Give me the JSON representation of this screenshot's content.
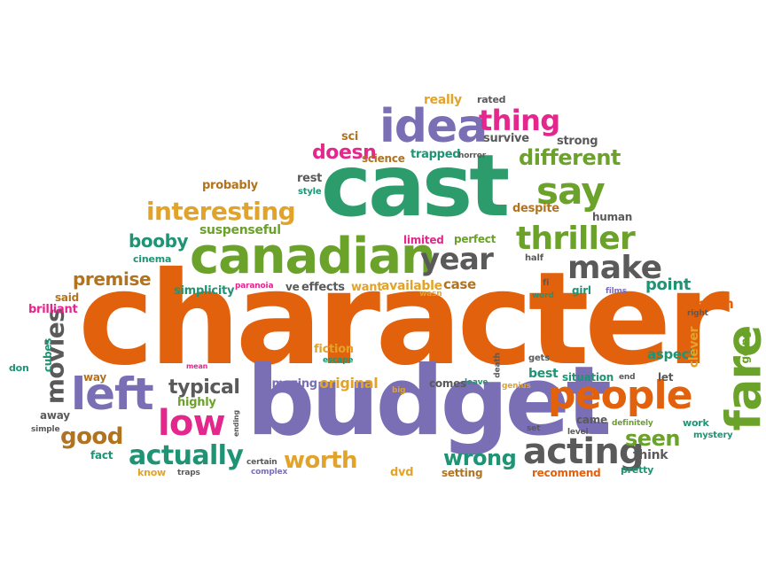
{
  "colors": {
    "orange": "#e2610c",
    "green": "#2c9c6c",
    "purple": "#7a6fb5",
    "gray": "#5a5a5a",
    "magenta": "#e3278c",
    "gold": "#e1a32a",
    "lime": "#6aa22a",
    "brown": "#b2731f",
    "teal": "#1f9475",
    "blue": "#4b8fc8"
  },
  "words": [
    {
      "text": "character",
      "weight": "huge",
      "color": "orange"
    },
    {
      "text": "budget",
      "weight": "huge",
      "color": "purple"
    },
    {
      "text": "cast",
      "weight": "huge",
      "color": "green"
    },
    {
      "text": "canadian",
      "weight": "large",
      "color": "lime"
    },
    {
      "text": "idea",
      "weight": "large",
      "color": "purple"
    },
    {
      "text": "fare",
      "weight": "large",
      "color": "lime"
    },
    {
      "text": "people",
      "weight": "large",
      "color": "orange"
    },
    {
      "text": "left",
      "weight": "large",
      "color": "purple"
    },
    {
      "text": "thriller",
      "weight": "large",
      "color": "lime"
    },
    {
      "text": "make",
      "weight": "large",
      "color": "gray"
    },
    {
      "text": "say",
      "weight": "large",
      "color": "lime"
    },
    {
      "text": "acting",
      "weight": "large",
      "color": "gray"
    },
    {
      "text": "low",
      "weight": "large",
      "color": "magenta"
    },
    {
      "text": "thing",
      "weight": "large",
      "color": "magenta"
    },
    {
      "text": "year",
      "weight": "large",
      "color": "gray"
    },
    {
      "text": "movies",
      "weight": "large",
      "color": "gray"
    },
    {
      "text": "interesting",
      "weight": "medium",
      "color": "gold"
    },
    {
      "text": "different",
      "weight": "medium",
      "color": "lime"
    },
    {
      "text": "actually",
      "weight": "medium",
      "color": "teal"
    },
    {
      "text": "worth",
      "weight": "medium",
      "color": "gold"
    },
    {
      "text": "good",
      "weight": "medium",
      "color": "brown"
    },
    {
      "text": "wrong",
      "weight": "medium",
      "color": "teal"
    },
    {
      "text": "seen",
      "weight": "medium",
      "color": "lime"
    },
    {
      "text": "typical",
      "weight": "medium",
      "color": "gray"
    },
    {
      "text": "premise",
      "weight": "medium",
      "color": "brown"
    },
    {
      "text": "doesn",
      "weight": "medium",
      "color": "magenta"
    },
    {
      "text": "booby",
      "weight": "medium",
      "color": "teal"
    },
    {
      "text": "point",
      "weight": "medium",
      "color": "teal"
    },
    {
      "text": "suspenseful",
      "weight": "small",
      "color": "lime"
    },
    {
      "text": "original",
      "weight": "small",
      "color": "gold"
    },
    {
      "text": "amazing",
      "weight": "small",
      "color": "purple"
    },
    {
      "text": "simplicity",
      "weight": "small",
      "color": "teal"
    },
    {
      "text": "available",
      "weight": "small",
      "color": "gold"
    },
    {
      "text": "aspect",
      "weight": "small",
      "color": "teal"
    },
    {
      "text": "room",
      "weight": "small",
      "color": "orange"
    },
    {
      "text": "clever",
      "weight": "small",
      "color": "gold"
    },
    {
      "text": "going",
      "weight": "small",
      "color": "lime"
    },
    {
      "text": "trapped",
      "weight": "small",
      "color": "teal"
    },
    {
      "text": "science",
      "weight": "small",
      "color": "brown"
    },
    {
      "text": "horror",
      "weight": "tiny",
      "color": "gray"
    },
    {
      "text": "survive",
      "weight": "small",
      "color": "gray"
    },
    {
      "text": "strong",
      "weight": "small",
      "color": "gray"
    },
    {
      "text": "really",
      "weight": "small",
      "color": "gold"
    },
    {
      "text": "rated",
      "weight": "tiny",
      "color": "gray"
    },
    {
      "text": "sci",
      "weight": "small",
      "color": "brown"
    },
    {
      "text": "probably",
      "weight": "small",
      "color": "brown"
    },
    {
      "text": "rest",
      "weight": "small",
      "color": "gray"
    },
    {
      "text": "style",
      "weight": "tiny",
      "color": "teal"
    },
    {
      "text": "despite",
      "weight": "small",
      "color": "brown"
    },
    {
      "text": "human",
      "weight": "small",
      "color": "gray"
    },
    {
      "text": "limited",
      "weight": "small",
      "color": "magenta"
    },
    {
      "text": "perfect",
      "weight": "small",
      "color": "lime"
    },
    {
      "text": "half",
      "weight": "tiny",
      "color": "gray"
    },
    {
      "text": "cinema",
      "weight": "small",
      "color": "teal"
    },
    {
      "text": "said",
      "weight": "small",
      "color": "brown"
    },
    {
      "text": "brilliant",
      "weight": "small",
      "color": "magenta"
    },
    {
      "text": "paranoia",
      "weight": "tiny",
      "color": "magenta"
    },
    {
      "text": "ve",
      "weight": "small",
      "color": "gray"
    },
    {
      "text": "effects",
      "weight": "small",
      "color": "gray"
    },
    {
      "text": "want",
      "weight": "small",
      "color": "gold"
    },
    {
      "text": "case",
      "weight": "small",
      "color": "brown"
    },
    {
      "text": "wasn",
      "weight": "tiny",
      "color": "gold"
    },
    {
      "text": "fi",
      "weight": "tiny",
      "color": "gray"
    },
    {
      "text": "word",
      "weight": "tiny",
      "color": "teal"
    },
    {
      "text": "girl",
      "weight": "small",
      "color": "teal"
    },
    {
      "text": "films",
      "weight": "tiny",
      "color": "purple"
    },
    {
      "text": "right",
      "weight": "tiny",
      "color": "gray"
    },
    {
      "text": "cubes",
      "weight": "small",
      "color": "teal"
    },
    {
      "text": "fiction",
      "weight": "small",
      "color": "gold"
    },
    {
      "text": "escape",
      "weight": "tiny",
      "color": "teal"
    },
    {
      "text": "death",
      "weight": "tiny",
      "color": "gray"
    },
    {
      "text": "gets",
      "weight": "tiny",
      "color": "gray"
    },
    {
      "text": "best",
      "weight": "small",
      "color": "teal"
    },
    {
      "text": "let",
      "weight": "small",
      "color": "gray"
    },
    {
      "text": "situation",
      "weight": "small",
      "color": "teal"
    },
    {
      "text": "end",
      "weight": "tiny",
      "color": "gray"
    },
    {
      "text": "work",
      "weight": "small",
      "color": "teal"
    },
    {
      "text": "don",
      "weight": "small",
      "color": "teal"
    },
    {
      "text": "way",
      "weight": "small",
      "color": "brown"
    },
    {
      "text": "mean",
      "weight": "tiny",
      "color": "magenta"
    },
    {
      "text": "highly",
      "weight": "small",
      "color": "lime"
    },
    {
      "text": "comes",
      "weight": "small",
      "color": "gray"
    },
    {
      "text": "leave",
      "weight": "tiny",
      "color": "teal"
    },
    {
      "text": "genius",
      "weight": "tiny",
      "color": "gold"
    },
    {
      "text": "big",
      "weight": "tiny",
      "color": "gold"
    },
    {
      "text": "came",
      "weight": "small",
      "color": "gray"
    },
    {
      "text": "definitely",
      "weight": "tiny",
      "color": "lime"
    },
    {
      "text": "level",
      "weight": "tiny",
      "color": "gray"
    },
    {
      "text": "mystery",
      "weight": "tiny",
      "color": "teal"
    },
    {
      "text": "away",
      "weight": "small",
      "color": "gray"
    },
    {
      "text": "simple",
      "weight": "tiny",
      "color": "gray"
    },
    {
      "text": "ending",
      "weight": "tiny",
      "color": "gray"
    },
    {
      "text": "set",
      "weight": "tiny",
      "color": "gray"
    },
    {
      "text": "think",
      "weight": "small",
      "color": "gray"
    },
    {
      "text": "fact",
      "weight": "small",
      "color": "teal"
    },
    {
      "text": "know",
      "weight": "small",
      "color": "gold"
    },
    {
      "text": "traps",
      "weight": "tiny",
      "color": "gray"
    },
    {
      "text": "certain",
      "weight": "tiny",
      "color": "gray"
    },
    {
      "text": "complex",
      "weight": "tiny",
      "color": "purple"
    },
    {
      "text": "dvd",
      "weight": "small",
      "color": "gold"
    },
    {
      "text": "setting",
      "weight": "small",
      "color": "brown"
    },
    {
      "text": "recommend",
      "weight": "small",
      "color": "orange"
    },
    {
      "text": "pretty",
      "weight": "small",
      "color": "teal"
    }
  ]
}
